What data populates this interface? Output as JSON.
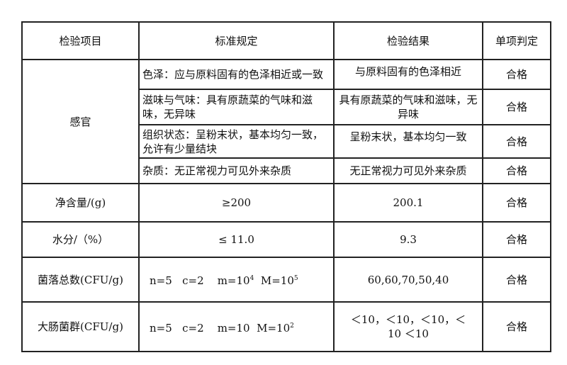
{
  "headers": [
    "检验项目",
    "标准规定",
    "检验结果",
    "单项判定"
  ],
  "sensory": {
    "label": "感官",
    "rows": [
      {
        "standard": "色泽：应与原料固有的色泽相近或一致",
        "result": "与原料固有的色泽相近",
        "verdict": "合格"
      },
      {
        "standard": "滋味与气味：具有原蔬菜的气味和滋味，无异味",
        "result": "具有原蔬菜的气味和滋味，无异味",
        "verdict": "合格"
      },
      {
        "standard": "组织状态：呈粉末状，基本均匀一致，允许有少量结块",
        "result": "呈粉末状，基本均匀一致",
        "verdict": "合格"
      },
      {
        "standard": "杂质：无正常视力可见外来杂质",
        "result": "无正常视力可见外来杂质",
        "verdict": "合格"
      }
    ]
  },
  "net": {
    "item": "净含量/(g)",
    "standard": "≥200",
    "result": "200.1",
    "verdict": "合格"
  },
  "moisture": {
    "item": "水分/（%）",
    "standard": "≤ 11.0",
    "result": "9.3",
    "verdict": "合格"
  },
  "total": {
    "item": "菌落总数(CFU/g)",
    "n": "n=5",
    "c": "c=2",
    "m": "m=10",
    "m_exp": "4",
    "M": "M=10",
    "M_exp": "5",
    "result": "60,60,70,50,40",
    "verdict": "合格"
  },
  "coliform": {
    "item": "大肠菌群(CFU/g)",
    "n": "n=5",
    "c": "c=2",
    "m": "m=10",
    "M": "M=10",
    "M_exp": "2",
    "result": "＜10，＜10，＜10，＜10 ＜10",
    "verdict": "合格"
  }
}
